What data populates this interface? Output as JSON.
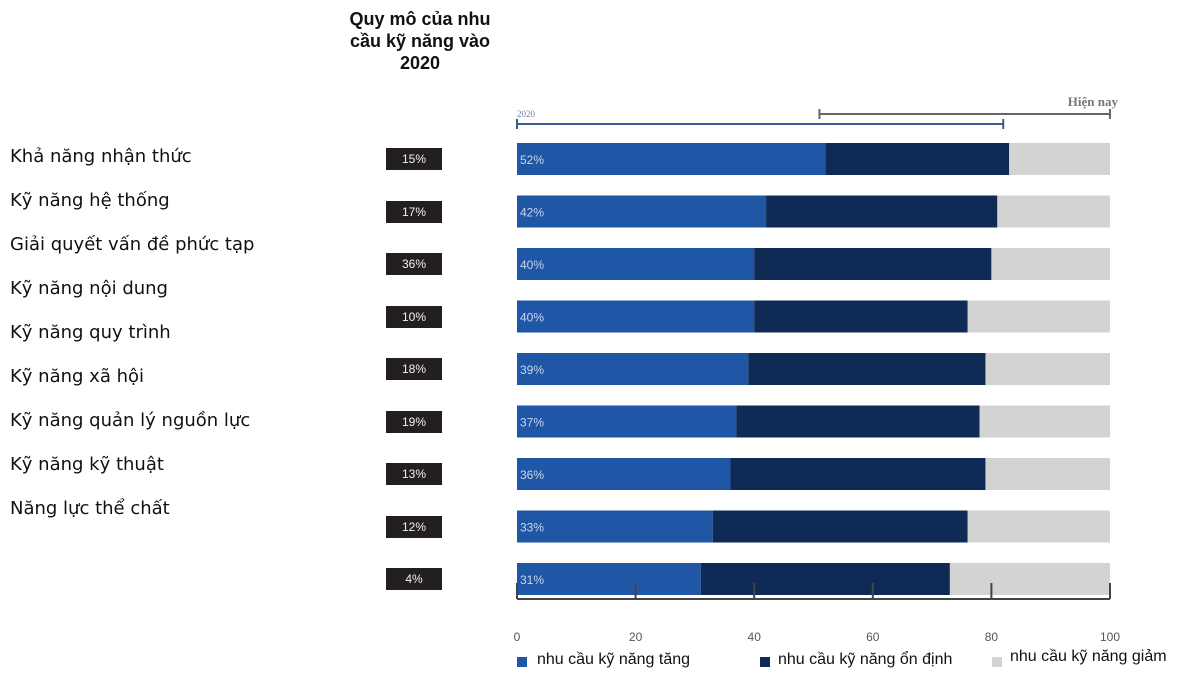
{
  "header": {
    "scale_title": "Quy mô của nhu cầu kỹ năng vào 2020"
  },
  "labels": [
    "Khả năng nhận thức",
    "Kỹ năng hệ thống",
    "Giải quyết vấn đề phức tạp",
    "Kỹ năng nội dung",
    "Kỹ năng quy trình",
    "Kỹ năng xã hội",
    "Kỹ năng quản lý nguồn lực",
    "Kỹ năng kỹ thuật",
    "Năng lực thể chất"
  ],
  "scale_values": [
    "15%",
    "17%",
    "36%",
    "10%",
    "18%",
    "19%",
    "13%",
    "12%",
    "4%"
  ],
  "timeline": {
    "year_label": "2020",
    "current_label": "Hiện nay"
  },
  "legend": {
    "increase": "nhu cầu kỹ năng tăng",
    "stable": "nhu cầu kỹ năng ổn định",
    "decrease": "nhu cầu kỹ năng giảm"
  },
  "colors": {
    "increase": "#1f56a6",
    "stable": "#0e2a55",
    "decrease": "#d3d3d3",
    "scale_box": "#231f20"
  },
  "chart_data": {
    "type": "bar",
    "orientation": "horizontal-stacked",
    "xlim": [
      0,
      100
    ],
    "x_ticks": [
      0,
      20,
      40,
      60,
      80,
      100
    ],
    "bar_labels": [
      "52%",
      "42%",
      "40%",
      "40%",
      "39%",
      "37%",
      "36%",
      "33%",
      "31%"
    ],
    "series": [
      {
        "name": "nhu cầu kỹ năng tăng",
        "values": [
          52,
          42,
          40,
          40,
          39,
          37,
          36,
          33,
          31
        ]
      },
      {
        "name": "nhu cầu kỹ năng ổn định",
        "values": [
          31,
          39,
          40,
          36,
          40,
          41,
          43,
          43,
          42
        ]
      },
      {
        "name": "nhu cầu kỹ năng giảm",
        "values": [
          17,
          19,
          20,
          24,
          21,
          22,
          21,
          24,
          27
        ]
      }
    ],
    "grid": false
  }
}
